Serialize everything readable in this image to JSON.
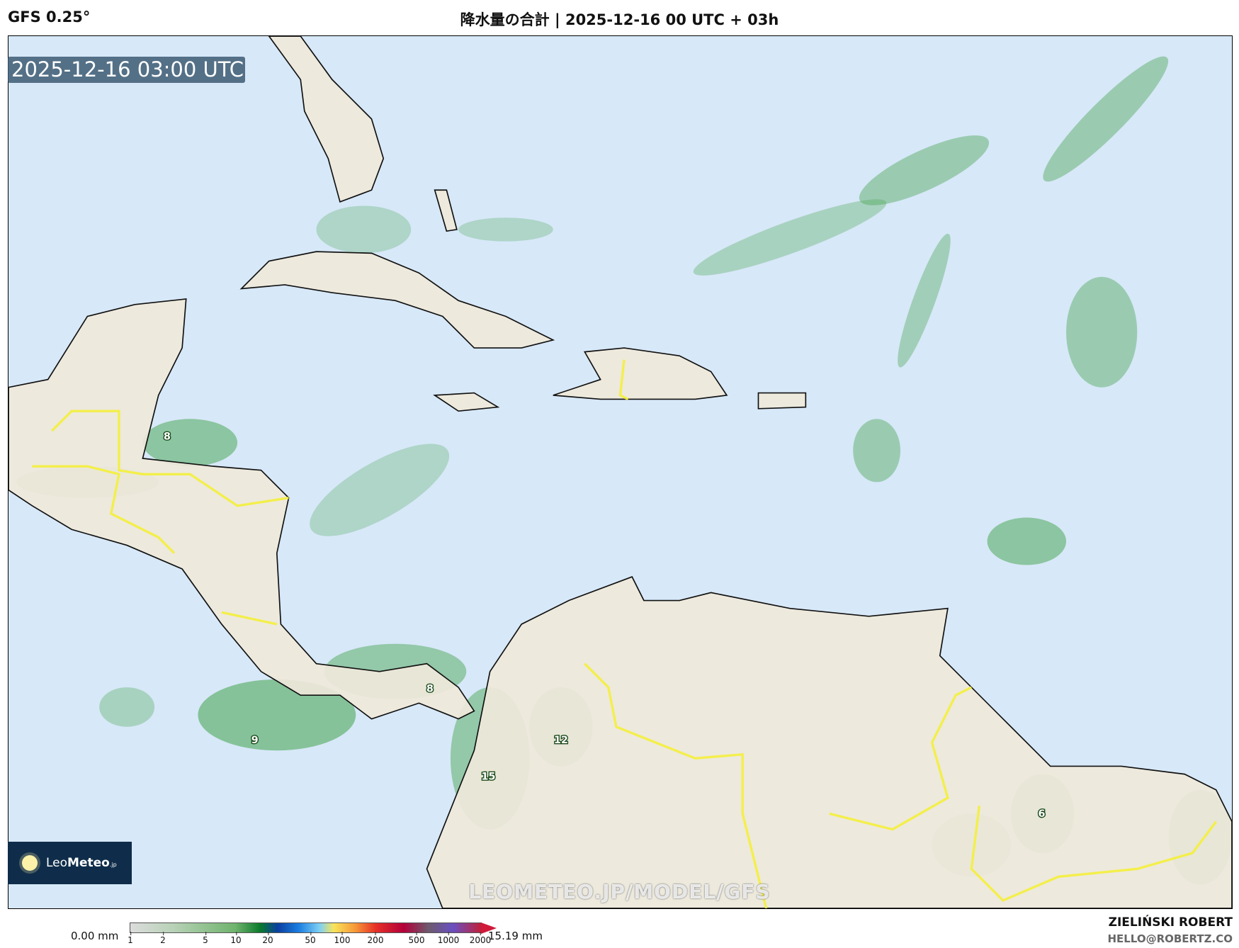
{
  "header": {
    "model": "GFS 0.25°",
    "title": "降水量の合計 | 2025-12-16 00 UTC + 03h"
  },
  "map": {
    "timestamp": "2025-12-16 03:00 UTC",
    "watermark": "LEOMETEO.JP/MODEL/GFS",
    "colors": {
      "ocean": "#d7e8f8",
      "land": "#efe8da",
      "precip": "#4fa85a",
      "country_border": "#f4f03a"
    },
    "value_labels": [
      "8",
      "8",
      "9",
      "12",
      "15",
      "6"
    ]
  },
  "logo": {
    "brand_light": "Leo",
    "brand_bold": "Meteo",
    "suffix": ".jp"
  },
  "legend": {
    "min_label": "0.00 mm",
    "max_label": "15.19 mm",
    "ticks": [
      "1",
      "2",
      "5",
      "10",
      "20",
      "50",
      "100",
      "200",
      "500",
      "1000",
      "2000"
    ]
  },
  "credit": {
    "author": "ZIELIŃSKI ROBERT",
    "email": "HELLO@ROBERTZ.CO"
  }
}
